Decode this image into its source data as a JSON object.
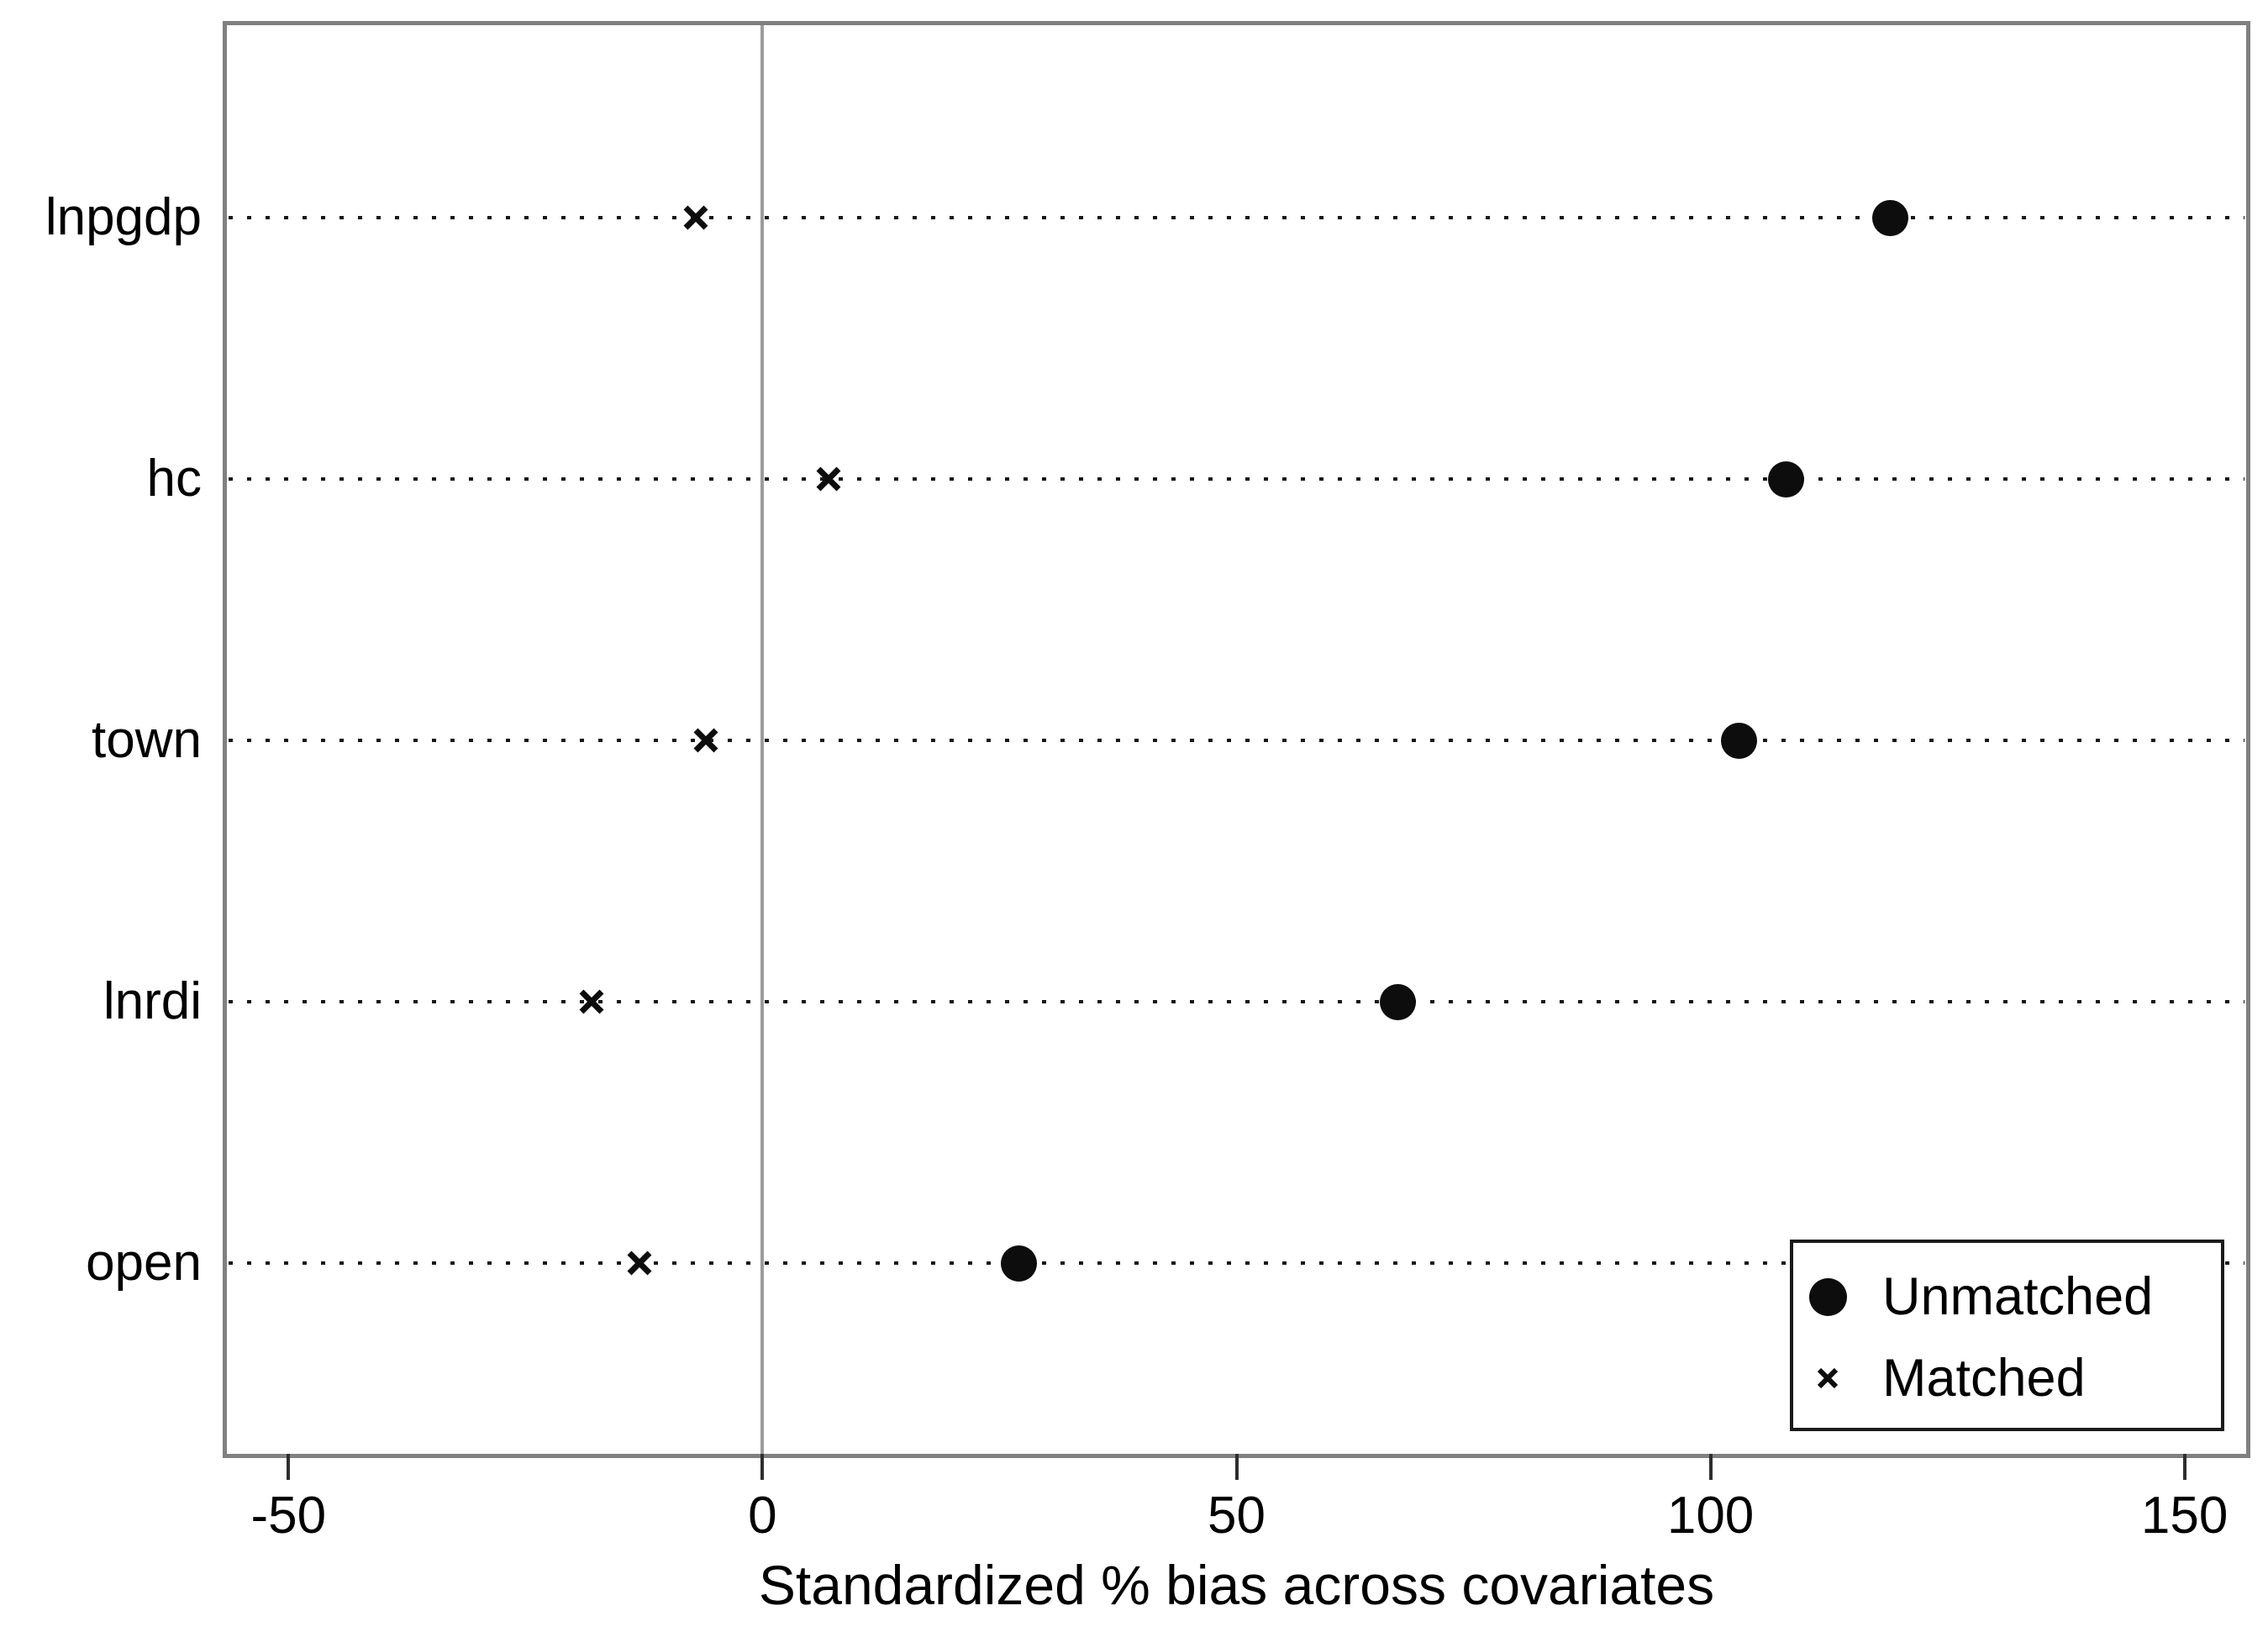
{
  "figure": {
    "background": "#ffffff",
    "frame_color": "#808080",
    "zero_line_color": "#9c9c9c",
    "grid_dot_color": "#161616",
    "marker_color": "#0d0d0d",
    "text_color": "#000000",
    "tick_color": "#2e2e2e",
    "legend_border_color": "#1a1a1a"
  },
  "chart_data": {
    "type": "scatter",
    "subtype": "horizontal-dot-plot",
    "title": "",
    "xlabel": "Standardized % bias across covariates",
    "ylabel": "",
    "categories": [
      "lnpgdp",
      "hc",
      "town",
      "lnrdi",
      "open"
    ],
    "series": [
      {
        "name": "Unmatched",
        "marker": "circle",
        "values": [
          119,
          108,
          103,
          67,
          27
        ]
      },
      {
        "name": "Matched",
        "marker": "x",
        "values": [
          -7,
          7,
          -6,
          -18,
          -13
        ]
      }
    ],
    "x_ticks": [
      -50,
      0,
      50,
      100,
      150
    ],
    "xlim": [
      -56.5,
      156.5
    ],
    "zero_reference_line": 0,
    "grid": "dotted horizontal row lines",
    "legend_position": "inside bottom-right"
  },
  "legend": {
    "entries": [
      {
        "marker": "circle",
        "label": "Unmatched"
      },
      {
        "marker": "x",
        "label": "Matched"
      }
    ]
  }
}
